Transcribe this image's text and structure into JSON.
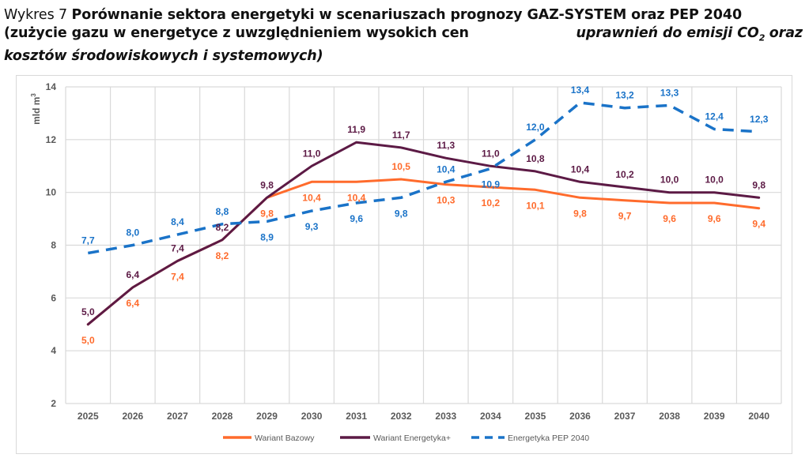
{
  "title": {
    "prefix": "Wykres 7",
    "line1_bold": "Porównanie sektora energetyki w scenariuszach prognozy GAZ-SYSTEM oraz PEP 2040",
    "line2_a": "(zużycie gazu w energetyce z uwzględnieniem wysokich cen",
    "line2_b": "uprawnień do emisji CO",
    "line2_sub": "2",
    "line2_c": "oraz",
    "line3": "kosztów środowiskowych i systemowych)"
  },
  "chart_data": {
    "type": "line",
    "title": "Porównanie sektora energetyki w scenariuszach prognozy GAZ-SYSTEM oraz PEP 2040",
    "xlabel": "",
    "ylabel": "mld m3",
    "ylabel_base": "mld m",
    "ylabel_sup": "3",
    "ylim": [
      2,
      14
    ],
    "yticks": [
      "2",
      "4",
      "6",
      "8",
      "10",
      "12",
      "14"
    ],
    "ytick_values": [
      2,
      4,
      6,
      8,
      10,
      12,
      14
    ],
    "grid": true,
    "legend_position": "bottom",
    "categories": [
      "2025",
      "2026",
      "2027",
      "2028",
      "2029",
      "2030",
      "2031",
      "2032",
      "2033",
      "2034",
      "2035",
      "2036",
      "2037",
      "2038",
      "2039",
      "2040"
    ],
    "series": [
      {
        "name": "Wariant Bazowy",
        "color": "#FF6B2C",
        "style": "solid",
        "values": [
          5.0,
          6.4,
          7.4,
          8.2,
          9.8,
          10.4,
          10.4,
          10.5,
          10.3,
          10.2,
          10.1,
          9.8,
          9.7,
          9.6,
          9.6,
          9.4
        ],
        "labels": [
          "5,0",
          "6,4",
          "7,4",
          "8,2",
          "9,8",
          "10,4",
          "10,4",
          "10,5",
          "10,3",
          "10,2",
          "10,1",
          "9,8",
          "9,7",
          "9,6",
          "9,6",
          "9,4"
        ],
        "label_side": [
          "below",
          "below",
          "below",
          "below",
          "below",
          "below",
          "below",
          "above",
          "below",
          "below",
          "below",
          "below",
          "below",
          "below",
          "below",
          "below"
        ]
      },
      {
        "name": "Wariant Energetyka+",
        "color": "#5C1A45",
        "style": "solid",
        "values": [
          5.0,
          6.4,
          7.4,
          8.2,
          9.8,
          11.0,
          11.9,
          11.7,
          11.3,
          11.0,
          10.8,
          10.4,
          10.2,
          10.0,
          10.0,
          9.8
        ],
        "labels": [
          "5,0",
          "6,4",
          "7,4",
          "8,2",
          "9,8",
          "11,0",
          "11,9",
          "11,7",
          "11,3",
          "11,0",
          "10,8",
          "10,4",
          "10,2",
          "10,0",
          "10,0",
          "9,8"
        ],
        "label_side": [
          "above",
          "above",
          "above",
          "above",
          "above",
          "above",
          "above",
          "above",
          "above",
          "above",
          "above",
          "above",
          "above",
          "above",
          "above",
          "above"
        ]
      },
      {
        "name": "Energetyka PEP 2040",
        "color": "#1A73C8",
        "style": "dashed",
        "values": [
          7.7,
          8.0,
          8.4,
          8.8,
          8.9,
          9.3,
          9.6,
          9.8,
          10.4,
          10.9,
          12.0,
          13.4,
          13.2,
          13.3,
          12.4,
          12.3
        ],
        "labels": [
          "7,7",
          "8,0",
          "8,4",
          "8,8",
          "8,9",
          "9,3",
          "9,6",
          "9,8",
          "10,4",
          "10,9",
          "12,0",
          "13,4",
          "13,2",
          "13,3",
          "12,4",
          "12,3"
        ],
        "label_side": [
          "above",
          "above",
          "above",
          "above",
          "below",
          "below",
          "below",
          "below",
          "above",
          "below",
          "above",
          "above",
          "above",
          "above",
          "above",
          "above"
        ]
      }
    ]
  }
}
